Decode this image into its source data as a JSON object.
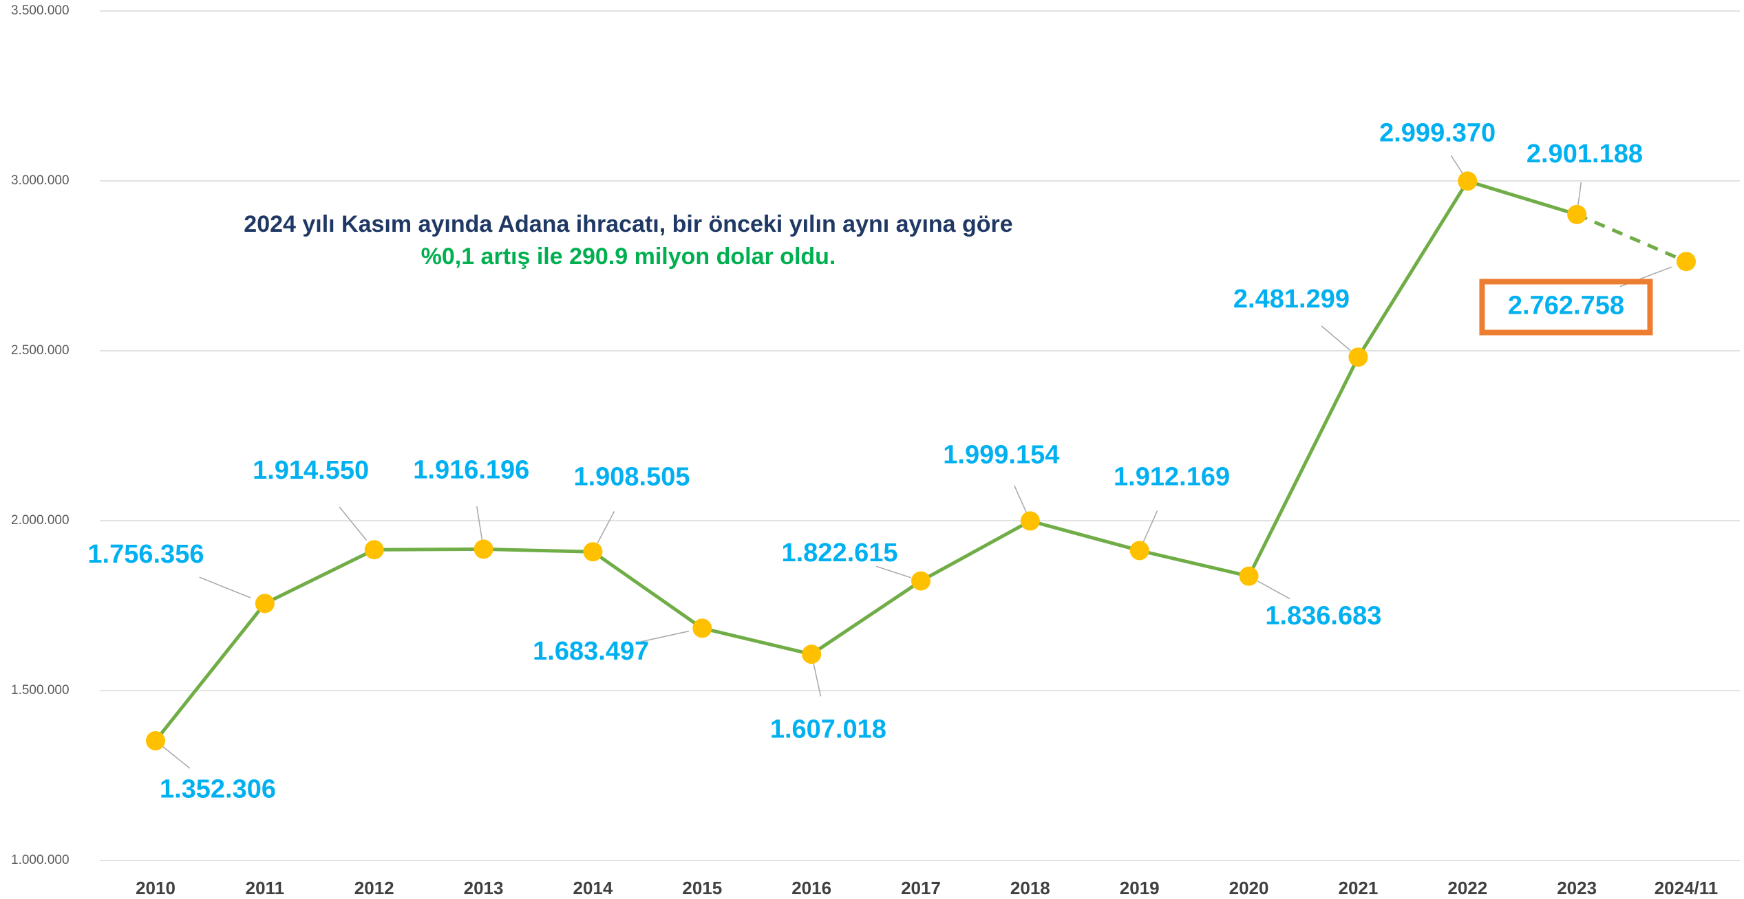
{
  "chart_data": {
    "type": "line",
    "annotation": [
      "2024 yılı Kasım ayında Adana ihracatı, bir önceki yılın aynı ayına göre",
      "%0,1 artış ile 290.9 milyon dolar oldu."
    ],
    "annotation_colors": [
      "#1f3864",
      "#00b050"
    ],
    "categories": [
      "2010",
      "2011",
      "2012",
      "2013",
      "2014",
      "2015",
      "2016",
      "2017",
      "2018",
      "2019",
      "2020",
      "2021",
      "2022",
      "2023",
      "2024/11"
    ],
    "series": [
      {
        "color": "#70ad47",
        "marker_color": "#ffc000",
        "values": [
          1352306,
          1756356,
          1914550,
          1916196,
          1908505,
          1683497,
          1607018,
          1822615,
          1999154,
          1912169,
          1836683,
          2481299,
          2999370,
          2901188,
          2762758
        ],
        "value_labels": [
          "1.352.306",
          "1.756.356",
          "1.914.550",
          "1.916.196",
          "1.908.505",
          "1.683.497",
          "1.607.018",
          "1.822.615",
          "1.999.154",
          "1.912.169",
          "1.836.683",
          "2.481.299",
          "2.999.370",
          "2.901.188",
          "2.762.758"
        ],
        "dashed_from": 13,
        "highlight_index": 14,
        "highlight_color": "#ed7d31"
      }
    ],
    "ylim": [
      1000000,
      3500000
    ],
    "yticks": [
      {
        "value": 1000000,
        "label": "1.000.000"
      },
      {
        "value": 1500000,
        "label": "1.500.000"
      },
      {
        "value": 2000000,
        "label": "2.000.000"
      },
      {
        "value": 2500000,
        "label": "2.500.000"
      },
      {
        "value": 3000000,
        "label": "3.000.000"
      },
      {
        "value": 3500000,
        "label": "3.500.000"
      }
    ],
    "grid": true
  }
}
